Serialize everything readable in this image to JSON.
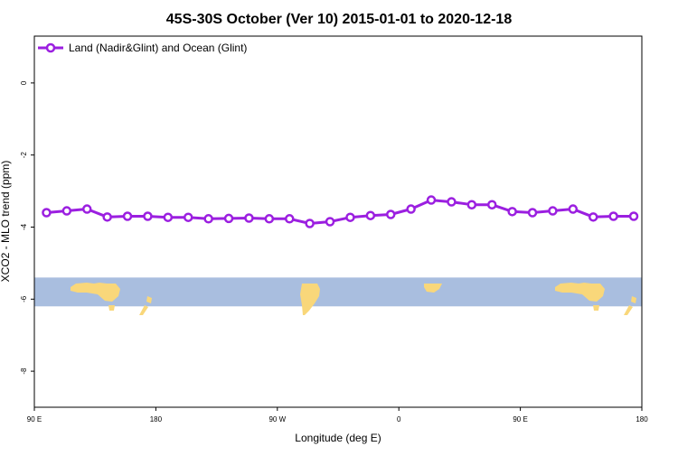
{
  "chart_data": {
    "type": "line",
    "title": "45S-30S October (Ver 10)   2015-01-01 to 2020-12-18",
    "xlabel": "Longitude (deg E)",
    "ylabel": "XCO2 - MLO trend (ppm)",
    "xlim": [
      90,
      540
    ],
    "ylim": [
      -9.0,
      1.3
    ],
    "x_ticks": [
      {
        "value": 90,
        "label": "90 E"
      },
      {
        "value": 180,
        "label": "180"
      },
      {
        "value": 270,
        "label": "90 W"
      },
      {
        "value": 360,
        "label": "0"
      },
      {
        "value": 450,
        "label": "90 E"
      },
      {
        "value": 540,
        "label": "180"
      }
    ],
    "y_ticks": [
      {
        "value": 0,
        "label": "0"
      },
      {
        "value": -2,
        "label": "-2"
      },
      {
        "value": -4,
        "label": "-4"
      },
      {
        "value": -6,
        "label": "-6"
      },
      {
        "value": -8,
        "label": "-8"
      }
    ],
    "legend": {
      "position": "top-left"
    },
    "grid": false,
    "map_band": {
      "y_range": [
        -5.4,
        -6.2
      ],
      "ocean_color": "#A9BEDF",
      "land_color": "#F9D77A"
    },
    "series": [
      {
        "name": "Land (Nadir&Glint) and Ocean (Glint)",
        "color": "#9B1FE0",
        "x": [
          99,
          114,
          129,
          144,
          159,
          174,
          189,
          204,
          219,
          234,
          249,
          264,
          279,
          294,
          309,
          324,
          339,
          354,
          369,
          384,
          399,
          414,
          429,
          444,
          459,
          474,
          489,
          504,
          519,
          534
        ],
        "y": [
          -3.6,
          -3.55,
          -3.5,
          -3.72,
          -3.7,
          -3.7,
          -3.73,
          -3.73,
          -3.77,
          -3.76,
          -3.75,
          -3.77,
          -3.77,
          -3.9,
          -3.85,
          -3.73,
          -3.68,
          -3.65,
          -3.5,
          -3.25,
          -3.3,
          -3.38,
          -3.38,
          -3.57,
          -3.6,
          -3.55,
          -3.5,
          -3.72,
          -3.7,
          -3.7
        ]
      }
    ]
  }
}
